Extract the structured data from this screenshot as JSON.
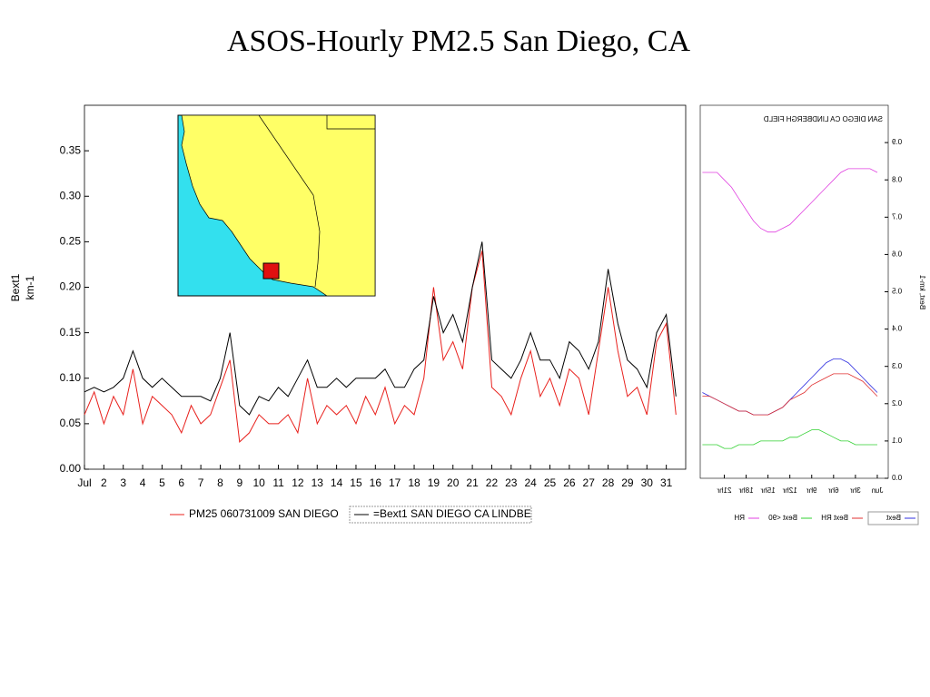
{
  "chart_data": [
    {
      "type": "line",
      "title": "ASOS-Hourly PM2.5 San Diego, CA",
      "ylabel": [
        "Bext1",
        "km-1"
      ],
      "x": [
        1,
        1.5,
        2,
        2.5,
        3,
        3.5,
        4,
        4.5,
        5,
        5.5,
        6,
        6.5,
        7,
        7.5,
        8,
        8.5,
        9,
        9.5,
        10,
        10.5,
        11,
        11.5,
        12,
        12.5,
        13,
        13.5,
        14,
        14.5,
        15,
        15.5,
        16,
        16.5,
        17,
        17.5,
        18,
        18.5,
        19,
        19.5,
        20,
        20.5,
        21,
        21.5,
        22,
        22.5,
        23,
        23.5,
        24,
        24.5,
        25,
        25.5,
        26,
        26.5,
        27,
        27.5,
        28,
        28.5,
        29,
        29.5,
        30,
        30.5,
        31,
        31.5
      ],
      "series": [
        {
          "name": "PM25 060731009 SAN DIEGO",
          "color": "#e8201c",
          "values": [
            0.06,
            0.085,
            0.05,
            0.08,
            0.06,
            0.11,
            0.05,
            0.08,
            0.07,
            0.06,
            0.04,
            0.07,
            0.05,
            0.06,
            0.09,
            0.12,
            0.03,
            0.04,
            0.06,
            0.05,
            0.05,
            0.06,
            0.04,
            0.1,
            0.05,
            0.07,
            0.06,
            0.07,
            0.05,
            0.08,
            0.06,
            0.09,
            0.05,
            0.07,
            0.06,
            0.1,
            0.2,
            0.12,
            0.14,
            0.11,
            0.2,
            0.24,
            0.09,
            0.08,
            0.06,
            0.1,
            0.13,
            0.08,
            0.1,
            0.07,
            0.11,
            0.1,
            0.06,
            0.13,
            0.2,
            0.13,
            0.08,
            0.09,
            0.06,
            0.14,
            0.16,
            0.06
          ]
        },
        {
          "name": "=Bext1 SAN DIEGO CA LINDBE",
          "color": "#000000",
          "values": [
            0.085,
            0.09,
            0.085,
            0.09,
            0.1,
            0.13,
            0.1,
            0.09,
            0.1,
            0.09,
            0.08,
            0.08,
            0.08,
            0.075,
            0.1,
            0.15,
            0.07,
            0.06,
            0.08,
            0.075,
            0.09,
            0.08,
            0.1,
            0.12,
            0.09,
            0.09,
            0.1,
            0.09,
            0.1,
            0.1,
            0.1,
            0.11,
            0.09,
            0.09,
            0.11,
            0.12,
            0.19,
            0.15,
            0.17,
            0.14,
            0.2,
            0.25,
            0.12,
            0.11,
            0.1,
            0.12,
            0.15,
            0.12,
            0.12,
            0.1,
            0.14,
            0.13,
            0.11,
            0.14,
            0.22,
            0.16,
            0.12,
            0.11,
            0.09,
            0.15,
            0.17,
            0.08
          ]
        }
      ],
      "xlim": [
        1,
        32
      ],
      "xticks": [
        {
          "value": 1,
          "label": "Jul"
        },
        2,
        3,
        4,
        5,
        6,
        7,
        8,
        9,
        10,
        11,
        12,
        13,
        14,
        15,
        16,
        17,
        18,
        19,
        20,
        21,
        22,
        23,
        24,
        25,
        26,
        27,
        28,
        29,
        30,
        31
      ],
      "ylim": [
        0,
        0.4
      ],
      "yticks": [
        {
          "value": 0,
          "label": "0.00"
        },
        {
          "value": 0.05,
          "label": "0.05"
        },
        {
          "value": 0.1,
          "label": "0.10"
        },
        {
          "value": 0.15,
          "label": "0.15"
        },
        {
          "value": 0.2,
          "label": "0.20"
        },
        {
          "value": 0.25,
          "label": "0.25"
        },
        {
          "value": 0.3,
          "label": "0.30"
        },
        {
          "value": 0.35,
          "label": "0.35"
        }
      ],
      "grid": false
    },
    {
      "type": "line",
      "title": "SAN DIEGO CA LINDBERGH FIELD",
      "ylabel": "Bext, km-1",
      "mirrored": true,
      "x": [
        0,
        1,
        2,
        3,
        4,
        5,
        6,
        7,
        8,
        9,
        10,
        11,
        12,
        13,
        14,
        15,
        16,
        17,
        18,
        19,
        20,
        21,
        22,
        23,
        24
      ],
      "series": [
        {
          "name": "Bext",
          "color": "#3030e0",
          "values": [
            0.23,
            0.25,
            0.27,
            0.29,
            0.31,
            0.32,
            0.32,
            0.31,
            0.29,
            0.27,
            0.25,
            0.23,
            0.21,
            0.19,
            0.18,
            0.17,
            0.17,
            0.17,
            0.18,
            0.18,
            0.19,
            0.2,
            0.21,
            0.22,
            0.23
          ]
        },
        {
          "name": "Bext RH",
          "color": "#e03030",
          "values": [
            0.22,
            0.24,
            0.26,
            0.27,
            0.28,
            0.28,
            0.28,
            0.27,
            0.26,
            0.25,
            0.23,
            0.22,
            0.21,
            0.19,
            0.18,
            0.17,
            0.17,
            0.17,
            0.18,
            0.18,
            0.19,
            0.2,
            0.21,
            0.22,
            0.22
          ]
        },
        {
          "name": "Bext <90",
          "color": "#30d030",
          "values": [
            0.09,
            0.09,
            0.09,
            0.09,
            0.1,
            0.1,
            0.11,
            0.12,
            0.13,
            0.13,
            0.12,
            0.11,
            0.11,
            0.1,
            0.1,
            0.1,
            0.1,
            0.09,
            0.09,
            0.09,
            0.08,
            0.08,
            0.09,
            0.09,
            0.09
          ]
        },
        {
          "name": "RH",
          "color": "#e040e0",
          "values": [
            0.82,
            0.83,
            0.83,
            0.83,
            0.83,
            0.82,
            0.8,
            0.78,
            0.76,
            0.74,
            0.72,
            0.7,
            0.68,
            0.67,
            0.66,
            0.66,
            0.67,
            0.69,
            0.72,
            0.75,
            0.78,
            0.8,
            0.82,
            0.82,
            0.82
          ]
        }
      ],
      "xlim": [
        -1.5,
        24.3
      ],
      "xticks": [
        {
          "value": 0,
          "label": "Jun"
        },
        {
          "value": 3,
          "label": "3hr"
        },
        {
          "value": 6,
          "label": "6hr"
        },
        {
          "value": 9,
          "label": "9hr"
        },
        {
          "value": 12,
          "label": "12hr"
        },
        {
          "value": 15,
          "label": "15hr"
        },
        {
          "value": 18,
          "label": "18hr"
        },
        {
          "value": 21,
          "label": "21hr"
        }
      ],
      "ylim": [
        0,
        1.0
      ],
      "yticks": [
        {
          "value": 0,
          "label": "0.0"
        },
        {
          "value": 0.1,
          "label": "0.1"
        },
        {
          "value": 0.2,
          "label": "0.2"
        },
        {
          "value": 0.3,
          "label": "0.3"
        },
        {
          "value": 0.4,
          "label": "0.4"
        },
        {
          "value": 0.5,
          "label": "0.5"
        },
        {
          "value": 0.6,
          "label": "0.6"
        },
        {
          "value": 0.7,
          "label": "0.7"
        },
        {
          "value": 0.8,
          "label": "0.8"
        },
        {
          "value": 0.9,
          "label": "0.9"
        }
      ],
      "grid": false
    }
  ]
}
